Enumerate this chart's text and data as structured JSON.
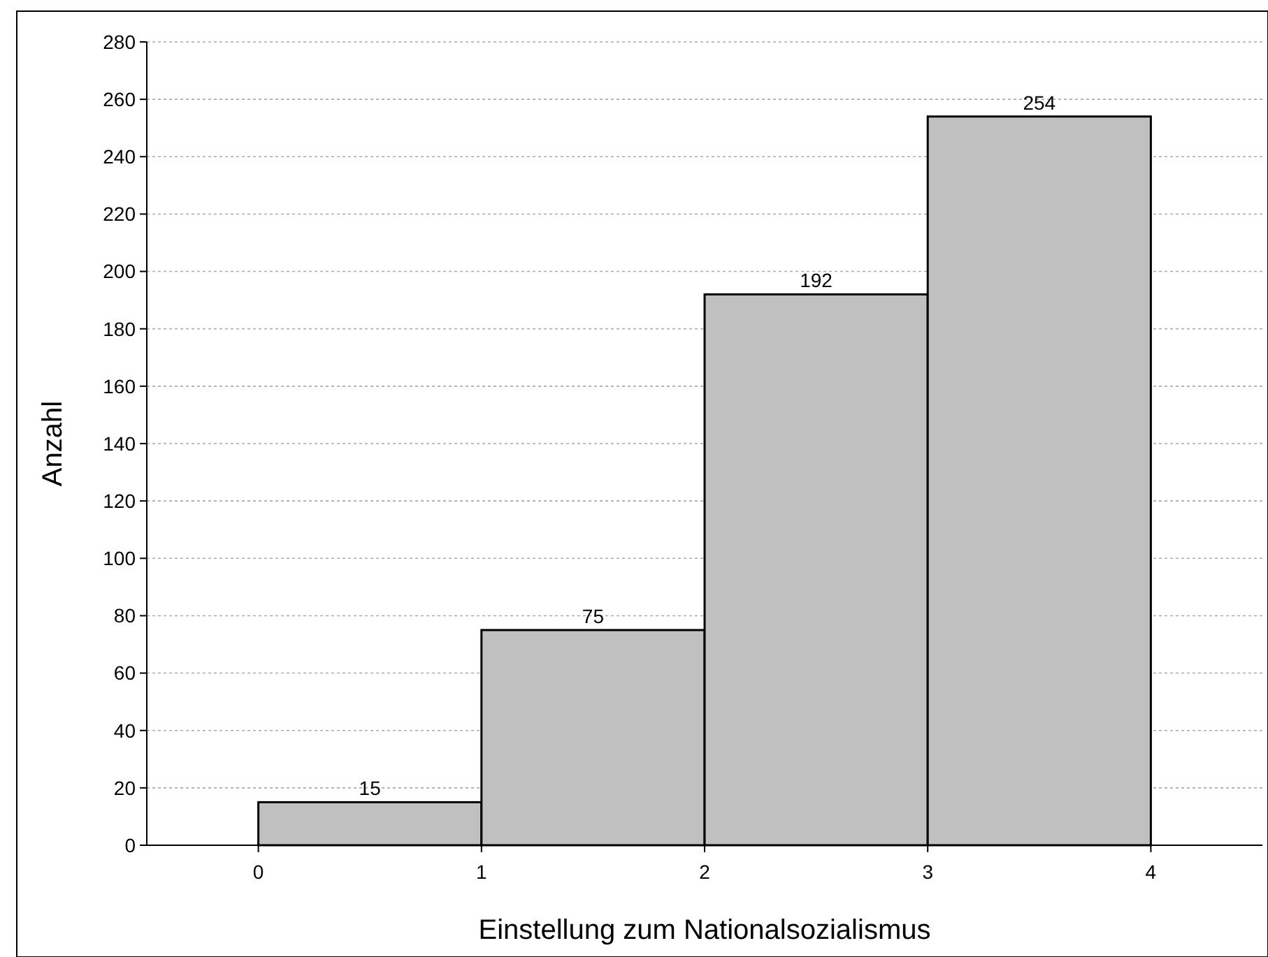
{
  "chart_data": {
    "type": "histogram",
    "xlabel": "Einstellung zum Nationalsozialismus",
    "ylabel": "Anzahl",
    "bins": [
      0,
      1,
      2,
      3,
      4
    ],
    "values": [
      15,
      75,
      192,
      254
    ],
    "color": "#c0c0c0",
    "xlim": [
      -0.5,
      4.5
    ],
    "xticks": [
      0,
      1,
      2,
      3,
      4
    ],
    "ylim": [
      0,
      280
    ],
    "yticks": [
      0,
      20,
      40,
      60,
      80,
      100,
      120,
      140,
      160,
      180,
      200,
      220,
      240,
      260,
      280
    ],
    "grid": "y",
    "data_labels": true
  }
}
